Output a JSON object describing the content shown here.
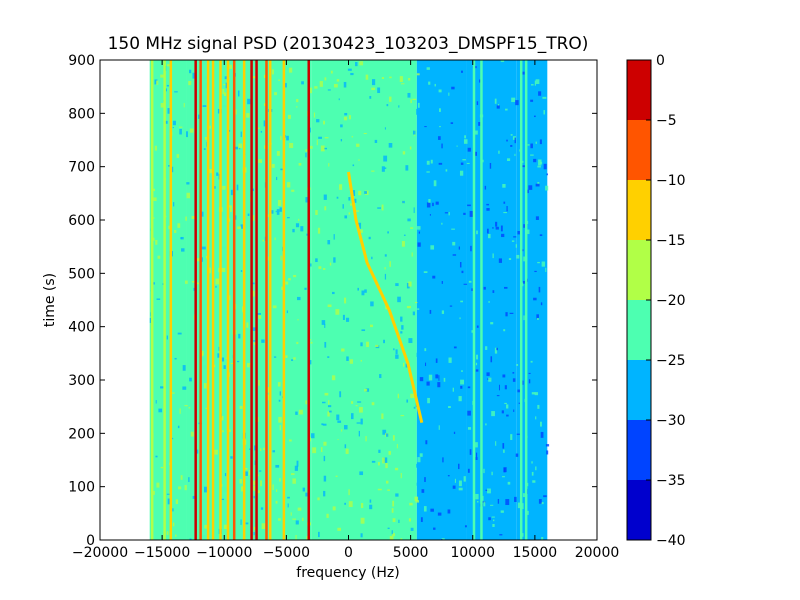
{
  "chart_data": {
    "type": "heatmap",
    "title": "150 MHz signal PSD (20130423_103203_DMSPF15_TRO)",
    "xlabel": "frequency (Hz)",
    "ylabel": "time (s)",
    "xlim": [
      -20000,
      20000
    ],
    "ylim": [
      0,
      900
    ],
    "xticks": [
      -20000,
      -15000,
      -10000,
      -5000,
      0,
      5000,
      10000,
      15000,
      20000
    ],
    "yticks": [
      0,
      100,
      200,
      300,
      400,
      500,
      600,
      700,
      800,
      900
    ],
    "data_extent_x": [
      -16000,
      16000
    ],
    "data_extent_y": [
      0,
      900
    ],
    "colorbar": {
      "range": [
        -40,
        0
      ],
      "ticks": [
        0,
        -5,
        -10,
        -15,
        -20,
        -25,
        -30,
        -35,
        -40
      ],
      "levels": [
        {
          "from": -40,
          "to": -35,
          "color": "#0000cd"
        },
        {
          "from": -35,
          "to": -30,
          "color": "#0044ff"
        },
        {
          "from": -30,
          "to": -25,
          "color": "#00b4ff"
        },
        {
          "from": -25,
          "to": -20,
          "color": "#4dffb1"
        },
        {
          "from": -20,
          "to": -15,
          "color": "#b1ff47"
        },
        {
          "from": -15,
          "to": -10,
          "color": "#ffd000"
        },
        {
          "from": -10,
          "to": -5,
          "color": "#ff5500"
        },
        {
          "from": -5,
          "to": 0,
          "color": "#cd0000"
        }
      ]
    },
    "background_level_bands": [
      {
        "x0": -16000,
        "x1": -13000,
        "level": -22
      },
      {
        "x0": -13000,
        "x1": -3000,
        "level": -22
      },
      {
        "x0": -3000,
        "x1": 5500,
        "level": -22
      },
      {
        "x0": 5500,
        "x1": 9500,
        "level": -27
      },
      {
        "x0": 9500,
        "x1": 13500,
        "level": -28
      },
      {
        "x0": 13500,
        "x1": 16000,
        "level": -27
      }
    ],
    "vertical_lines": [
      {
        "x": -15800,
        "level": -17
      },
      {
        "x": -14800,
        "level": -17
      },
      {
        "x": -14300,
        "level": -12
      },
      {
        "x": -12300,
        "level": -3
      },
      {
        "x": -11900,
        "level": -6
      },
      {
        "x": -11300,
        "level": -12
      },
      {
        "x": -10900,
        "level": -12
      },
      {
        "x": -10300,
        "level": -12
      },
      {
        "x": -9700,
        "level": -12
      },
      {
        "x": -9200,
        "level": -6
      },
      {
        "x": -8400,
        "level": -12
      },
      {
        "x": -7800,
        "level": -3
      },
      {
        "x": -7400,
        "level": -3
      },
      {
        "x": -6600,
        "level": -8
      },
      {
        "x": -6300,
        "level": -12
      },
      {
        "x": -5200,
        "level": -12
      },
      {
        "x": -3200,
        "level": -4
      },
      {
        "x": 10100,
        "level": -22
      },
      {
        "x": 10700,
        "level": -22
      },
      {
        "x": 13900,
        "level": -22
      },
      {
        "x": 14300,
        "level": -22
      }
    ],
    "drifting_trace": {
      "level": -12,
      "points": [
        [
          5900,
          220
        ],
        [
          4800,
          330
        ],
        [
          3300,
          430
        ],
        [
          1500,
          520
        ],
        [
          600,
          600
        ],
        [
          0,
          690
        ]
      ]
    }
  }
}
